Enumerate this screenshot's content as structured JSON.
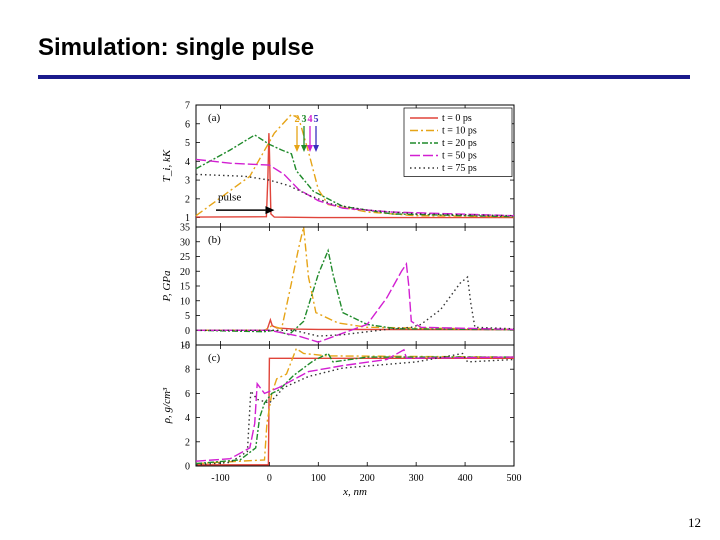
{
  "slide": {
    "title": "Simulation: single pulse",
    "page_number": "12"
  },
  "colors": {
    "title_rule": "#1a1a8c"
  },
  "chart_data": {
    "type": "line",
    "x_label": "x, nm",
    "xlim": [
      -150,
      500
    ],
    "x_ticks": [
      -100,
      0,
      100,
      200,
      300,
      400,
      500
    ],
    "pulse_label": "pulse",
    "probe_labels": [
      "2",
      "3",
      "4",
      "5"
    ],
    "series": [
      {
        "name": "t = 0 ps",
        "color": "#e0443a",
        "dash": "solid"
      },
      {
        "name": "t = 10 ps",
        "color": "#e6a417",
        "dash": "8,3,2,3"
      },
      {
        "name": "t = 20 ps",
        "color": "#1f8a2a",
        "dash": "6,2,2,2"
      },
      {
        "name": "t = 50 ps",
        "color": "#d21fd2",
        "dash": "10,3"
      },
      {
        "name": "t = 75 ps",
        "color": "#333333",
        "dash": "1.5,3"
      }
    ],
    "panels": [
      {
        "id": "a",
        "label": "(a)",
        "ylabel": "T_i, kK",
        "ylim": [
          0.5,
          7
        ],
        "yticks": [
          1,
          2,
          3,
          4,
          5,
          6,
          7
        ],
        "data": [
          [
            [
              -150,
              1.03
            ],
            [
              -6,
              1.05
            ],
            [
              -3,
              3.2
            ],
            [
              -1,
              5.5
            ],
            [
              0,
              4.6
            ],
            [
              3,
              1.2
            ],
            [
              10,
              1.03
            ],
            [
              100,
              1.0
            ],
            [
              500,
              1.0
            ]
          ],
          [
            [
              -150,
              1.1
            ],
            [
              -40,
              3.2
            ],
            [
              10,
              5.5
            ],
            [
              45,
              6.5
            ],
            [
              60,
              6.3
            ],
            [
              80,
              4.5
            ],
            [
              100,
              2.5
            ],
            [
              120,
              1.7
            ],
            [
              200,
              1.3
            ],
            [
              300,
              1.1
            ],
            [
              500,
              1.05
            ]
          ],
          [
            [
              -150,
              3.6
            ],
            [
              -80,
              4.6
            ],
            [
              -30,
              5.4
            ],
            [
              0,
              4.9
            ],
            [
              25,
              4.6
            ],
            [
              45,
              4.4
            ],
            [
              55,
              3.5
            ],
            [
              90,
              2.4
            ],
            [
              150,
              1.6
            ],
            [
              250,
              1.2
            ],
            [
              500,
              1.05
            ]
          ],
          [
            [
              -150,
              4.1
            ],
            [
              -80,
              3.9
            ],
            [
              0,
              3.8
            ],
            [
              30,
              3.3
            ],
            [
              60,
              2.5
            ],
            [
              100,
              1.9
            ],
            [
              150,
              1.5
            ],
            [
              250,
              1.3
            ],
            [
              500,
              1.1
            ]
          ],
          [
            [
              -150,
              3.3
            ],
            [
              -50,
              3.2
            ],
            [
              0,
              3.0
            ],
            [
              40,
              2.7
            ],
            [
              80,
              2.2
            ],
            [
              130,
              1.7
            ],
            [
              200,
              1.4
            ],
            [
              300,
              1.2
            ],
            [
              500,
              1.1
            ]
          ]
        ]
      },
      {
        "id": "b",
        "label": "(b)",
        "ylabel": "P, GPa",
        "ylim": [
          -5,
          35
        ],
        "yticks": [
          -5,
          0,
          5,
          10,
          15,
          20,
          25,
          30,
          35
        ],
        "data": [
          [
            [
              -150,
              0
            ],
            [
              -5,
              0
            ],
            [
              2,
              3.5
            ],
            [
              6,
              1.5
            ],
            [
              15,
              0.8
            ],
            [
              50,
              0.4
            ],
            [
              100,
              0.3
            ],
            [
              500,
              0.2
            ]
          ],
          [
            [
              -150,
              0
            ],
            [
              -10,
              0
            ],
            [
              5,
              1.5
            ],
            [
              25,
              0.5
            ],
            [
              45,
              16
            ],
            [
              60,
              28
            ],
            [
              70,
              35
            ],
            [
              80,
              18
            ],
            [
              95,
              6
            ],
            [
              140,
              2.5
            ],
            [
              200,
              1
            ],
            [
              500,
              0.3
            ]
          ],
          [
            [
              -150,
              0
            ],
            [
              -10,
              -0.5
            ],
            [
              10,
              0
            ],
            [
              40,
              -1.5
            ],
            [
              70,
              3
            ],
            [
              100,
              19
            ],
            [
              120,
              27
            ],
            [
              130,
              19
            ],
            [
              150,
              6
            ],
            [
              200,
              2
            ],
            [
              260,
              0.5
            ],
            [
              500,
              0.2
            ]
          ],
          [
            [
              -150,
              0
            ],
            [
              0,
              0
            ],
            [
              60,
              -2
            ],
            [
              100,
              -4
            ],
            [
              150,
              -1
            ],
            [
              200,
              2
            ],
            [
              240,
              11
            ],
            [
              270,
              20
            ],
            [
              280,
              22.5
            ],
            [
              285,
              15
            ],
            [
              290,
              3
            ],
            [
              310,
              1
            ],
            [
              500,
              0.3
            ]
          ],
          [
            [
              -150,
              0
            ],
            [
              50,
              0
            ],
            [
              100,
              -2
            ],
            [
              150,
              -1.5
            ],
            [
              250,
              0.5
            ],
            [
              290,
              1
            ],
            [
              310,
              2
            ],
            [
              350,
              7
            ],
            [
              390,
              16
            ],
            [
              405,
              18
            ],
            [
              412,
              9
            ],
            [
              420,
              1
            ],
            [
              500,
              0.5
            ]
          ]
        ]
      },
      {
        "id": "c",
        "label": "(c)",
        "ylabel": "ρ, g/cm³",
        "ylim": [
          0,
          10
        ],
        "yticks": [
          0,
          2,
          4,
          6,
          8,
          10
        ],
        "data": [
          [
            [
              -150,
              0.1
            ],
            [
              -2,
              0.1
            ],
            [
              0,
              8.9
            ],
            [
              500,
              8.9
            ]
          ],
          [
            [
              -150,
              0.2
            ],
            [
              -10,
              0.5
            ],
            [
              -5,
              3.5
            ],
            [
              5,
              6
            ],
            [
              15,
              7.2
            ],
            [
              35,
              7.6
            ],
            [
              55,
              9.7
            ],
            [
              70,
              9.3
            ],
            [
              120,
              9.1
            ],
            [
              500,
              9
            ]
          ],
          [
            [
              -150,
              0.2
            ],
            [
              -60,
              0.5
            ],
            [
              -28,
              1.5
            ],
            [
              -20,
              4
            ],
            [
              -10,
              5.2
            ],
            [
              5,
              6
            ],
            [
              20,
              6.3
            ],
            [
              50,
              7.5
            ],
            [
              90,
              8.7
            ],
            [
              120,
              9.3
            ],
            [
              130,
              8.6
            ],
            [
              200,
              9
            ],
            [
              500,
              9
            ]
          ],
          [
            [
              -150,
              0.4
            ],
            [
              -80,
              0.6
            ],
            [
              -40,
              1.5
            ],
            [
              -30,
              3.5
            ],
            [
              -25,
              6.8
            ],
            [
              -10,
              6
            ],
            [
              20,
              6.5
            ],
            [
              80,
              7.8
            ],
            [
              150,
              8.3
            ],
            [
              240,
              8.8
            ],
            [
              275,
              9.6
            ],
            [
              280,
              8.9
            ],
            [
              500,
              9
            ]
          ],
          [
            [
              -150,
              0.1
            ],
            [
              -80,
              0.3
            ],
            [
              -45,
              1.2
            ],
            [
              -38,
              6.2
            ],
            [
              -25,
              5.5
            ],
            [
              0,
              5.2
            ],
            [
              30,
              6.5
            ],
            [
              80,
              7.4
            ],
            [
              150,
              8.1
            ],
            [
              300,
              8.6
            ],
            [
              395,
              9.3
            ],
            [
              405,
              8.6
            ],
            [
              500,
              8.8
            ]
          ]
        ]
      }
    ]
  }
}
